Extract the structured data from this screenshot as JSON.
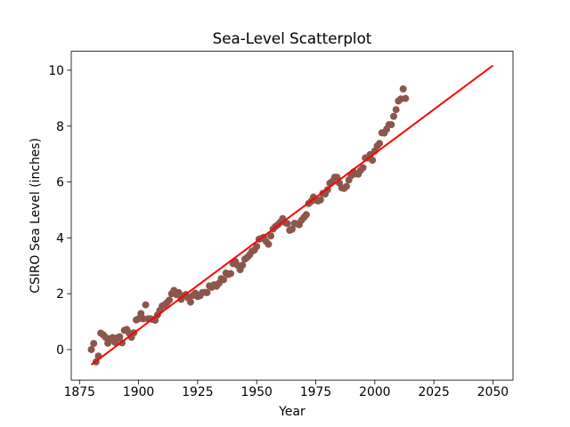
{
  "chart_data": {
    "type": "scatter",
    "title": "Sea-Level Scatterplot",
    "x_label": "Year",
    "y_label": "CSIRO Sea Level (inches)",
    "xlim": [
      1871.5,
      2058.5
    ],
    "ylim": [
      -1.09,
      10.68
    ],
    "xticks": [
      1875,
      1900,
      1925,
      1950,
      1975,
      2000,
      2025,
      2050
    ],
    "yticks": [
      0,
      2,
      4,
      6,
      8,
      10
    ],
    "series": [
      {
        "type": "scatter",
        "color": "#8c564b",
        "x": [
          1880,
          1881,
          1882,
          1883,
          1884,
          1885,
          1886,
          1887,
          1888,
          1889,
          1890,
          1891,
          1892,
          1893,
          1894,
          1895,
          1896,
          1897,
          1898,
          1899,
          1900,
          1901,
          1902,
          1903,
          1904,
          1905,
          1906,
          1907,
          1908,
          1909,
          1910,
          1911,
          1912,
          1913,
          1914,
          1915,
          1916,
          1917,
          1918,
          1919,
          1920,
          1921,
          1922,
          1923,
          1924,
          1925,
          1926,
          1927,
          1928,
          1929,
          1930,
          1931,
          1932,
          1933,
          1934,
          1935,
          1936,
          1937,
          1938,
          1939,
          1940,
          1941,
          1942,
          1943,
          1944,
          1945,
          1946,
          1947,
          1948,
          1949,
          1950,
          1951,
          1952,
          1953,
          1954,
          1955,
          1956,
          1957,
          1958,
          1959,
          1960,
          1961,
          1962,
          1963,
          1964,
          1965,
          1966,
          1967,
          1968,
          1969,
          1970,
          1971,
          1972,
          1973,
          1974,
          1975,
          1976,
          1977,
          1978,
          1979,
          1980,
          1981,
          1982,
          1983,
          1984,
          1985,
          1986,
          1987,
          1988,
          1989,
          1990,
          1991,
          1992,
          1993,
          1994,
          1995,
          1996,
          1997,
          1998,
          1999,
          2000,
          2001,
          2002,
          2003,
          2004,
          2005,
          2006,
          2007,
          2008,
          2009,
          2010,
          2011,
          2012,
          2013
        ],
        "values": [
          0,
          0.22,
          -0.44,
          -0.23,
          0.59,
          0.53,
          0.44,
          0.23,
          0.39,
          0.43,
          0.26,
          0.42,
          0.46,
          0.24,
          0.69,
          0.72,
          0.59,
          0.44,
          0.6,
          1.06,
          1.1,
          1.29,
          1.1,
          1.6,
          1.1,
          1.1,
          1.08,
          1.05,
          1.24,
          1.4,
          1.56,
          1.6,
          1.68,
          1.77,
          2.0,
          2.12,
          1.97,
          2.04,
          1.8,
          1.92,
          1.97,
          1.85,
          1.7,
          1.94,
          2.02,
          1.9,
          1.93,
          2.04,
          2.05,
          2.04,
          2.28,
          2.23,
          2.32,
          2.27,
          2.37,
          2.54,
          2.5,
          2.74,
          2.69,
          2.72,
          3.08,
          3.15,
          3.01,
          2.86,
          3.02,
          3.24,
          3.3,
          3.39,
          3.52,
          3.56,
          3.69,
          3.95,
          3.98,
          4.02,
          3.87,
          3.77,
          4.07,
          4.32,
          4.41,
          4.47,
          4.56,
          4.69,
          4.55,
          4.51,
          4.27,
          4.31,
          4.52,
          4.5,
          4.47,
          4.63,
          4.73,
          4.83,
          5.23,
          5.3,
          5.46,
          5.35,
          5.32,
          5.36,
          5.59,
          5.57,
          5.72,
          5.96,
          6.02,
          6.17,
          6.17,
          5.96,
          5.79,
          5.77,
          5.84,
          6.07,
          6.23,
          6.36,
          6.29,
          6.28,
          6.42,
          6.51,
          6.86,
          6.86,
          6.98,
          6.78,
          7.11,
          7.29,
          7.38,
          7.76,
          7.75,
          7.89,
          8.05,
          8.05,
          8.35,
          8.59,
          8.9,
          8.97,
          9.33,
          8.99
        ]
      },
      {
        "type": "line",
        "color": "#ff0000",
        "x": [
          1880,
          2050
        ],
        "values": [
          -0.54,
          10.17
        ]
      }
    ]
  }
}
